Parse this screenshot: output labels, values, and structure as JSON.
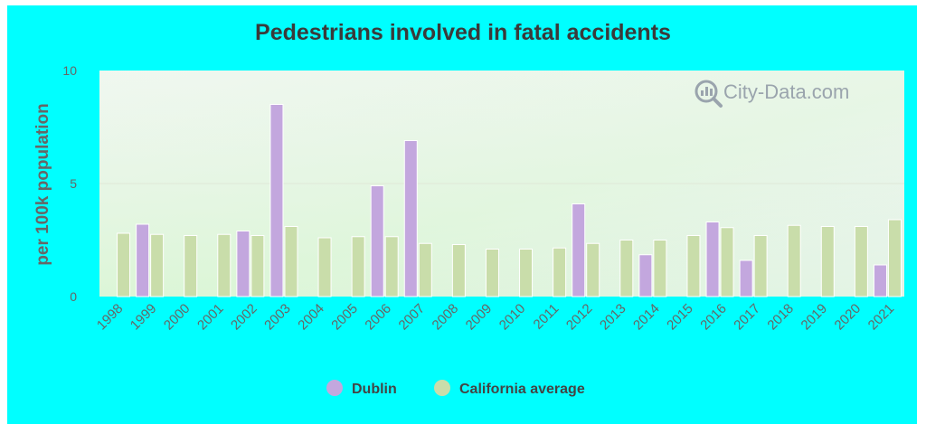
{
  "chart_data": {
    "type": "bar",
    "title": "Pedestrians involved in fatal accidents",
    "ylabel": "per 100k population",
    "xlabel": "",
    "ylim": [
      0,
      10
    ],
    "yticks": [
      0,
      5,
      10
    ],
    "categories": [
      "1998",
      "1999",
      "2000",
      "2001",
      "2002",
      "2003",
      "2004",
      "2005",
      "2006",
      "2007",
      "2008",
      "2009",
      "2010",
      "2011",
      "2012",
      "2013",
      "2014",
      "2015",
      "2016",
      "2017",
      "2018",
      "2019",
      "2020",
      "2021"
    ],
    "series": [
      {
        "name": "Dublin",
        "color": "#c3a7de",
        "values": [
          null,
          3.2,
          null,
          null,
          2.9,
          8.5,
          null,
          null,
          4.9,
          6.9,
          null,
          null,
          null,
          null,
          4.1,
          null,
          1.85,
          null,
          3.3,
          1.6,
          null,
          null,
          null,
          1.4
        ]
      },
      {
        "name": "California average",
        "color": "#c9ddaa",
        "values": [
          2.8,
          2.75,
          2.7,
          2.75,
          2.7,
          3.1,
          2.6,
          2.65,
          2.65,
          2.35,
          2.3,
          2.1,
          2.1,
          2.15,
          2.35,
          2.5,
          2.5,
          2.7,
          3.05,
          2.7,
          3.15,
          3.1,
          3.1,
          3.4
        ]
      }
    ],
    "legend_position": "bottom-center",
    "grid": true
  },
  "watermark": {
    "text": "City-Data.com",
    "icon": "magnifier-icon"
  }
}
